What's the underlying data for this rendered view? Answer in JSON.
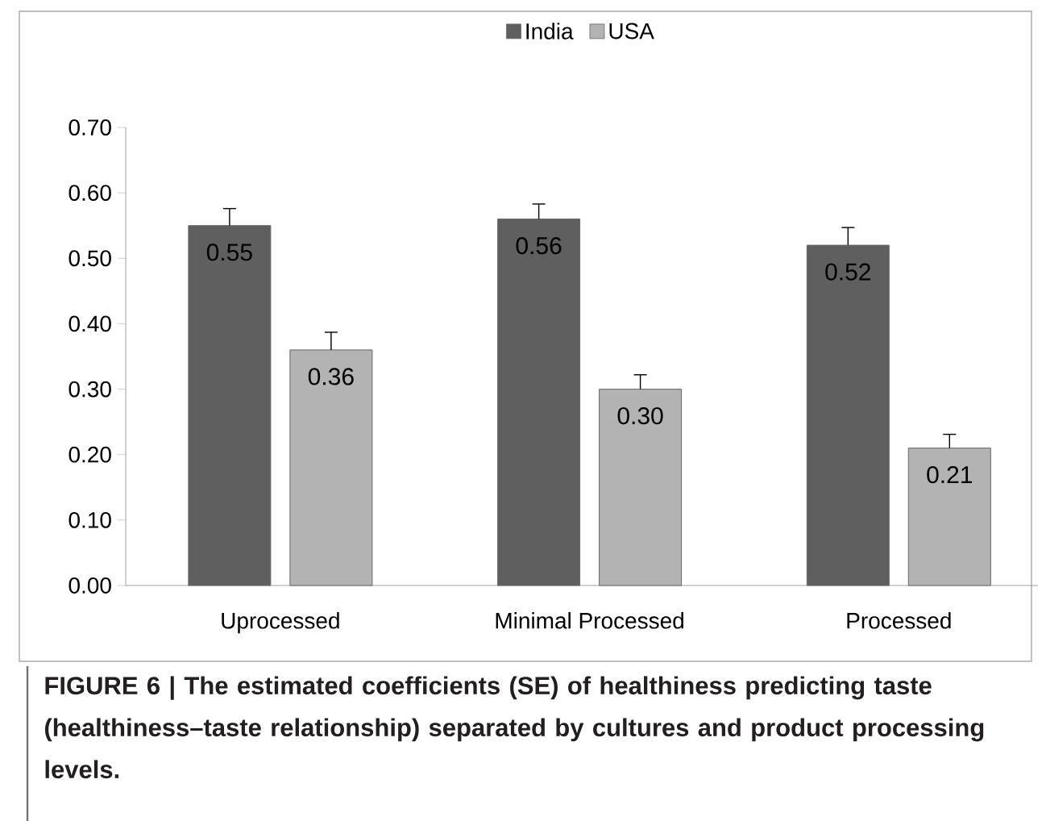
{
  "chart_data": {
    "type": "bar",
    "categories": [
      "Uprocessed",
      "Minimal Processed",
      "Processed"
    ],
    "series": [
      {
        "name": "India",
        "color": "#5f5f5f",
        "values": [
          0.55,
          0.56,
          0.52
        ],
        "value_labels": [
          "0.55",
          "0.56",
          "0.52"
        ],
        "errors": [
          [
            0.55,
            0.576
          ],
          [
            0.56,
            0.583
          ],
          [
            0.52,
            0.547
          ]
        ]
      },
      {
        "name": "USA",
        "color": "#b3b3b3",
        "values": [
          0.36,
          0.3,
          0.21
        ],
        "value_labels": [
          "0.36",
          "0.30",
          "0.21"
        ],
        "errors": [
          [
            0.36,
            0.387
          ],
          [
            0.3,
            0.322
          ],
          [
            0.21,
            0.231
          ]
        ]
      }
    ],
    "ylim": [
      0,
      0.7
    ],
    "yticks": [
      {
        "value": 0,
        "label": "0.00"
      },
      {
        "value": 0.1,
        "label": "0.10"
      },
      {
        "value": 0.2,
        "label": "0.20"
      },
      {
        "value": 0.3,
        "label": "0.30"
      },
      {
        "value": 0.4,
        "label": "0.40"
      },
      {
        "value": 0.5,
        "label": "0.50"
      },
      {
        "value": 0.6,
        "label": "0.60"
      },
      {
        "value": 0.7,
        "label": "0.70"
      }
    ],
    "grid": false,
    "legend": "top",
    "annotations": [
      "FIGURE 6 | The estimated coefficients (SE) of healthiness predicting taste (healthiness–taste relationship) separated by cultures and product processing levels."
    ]
  }
}
